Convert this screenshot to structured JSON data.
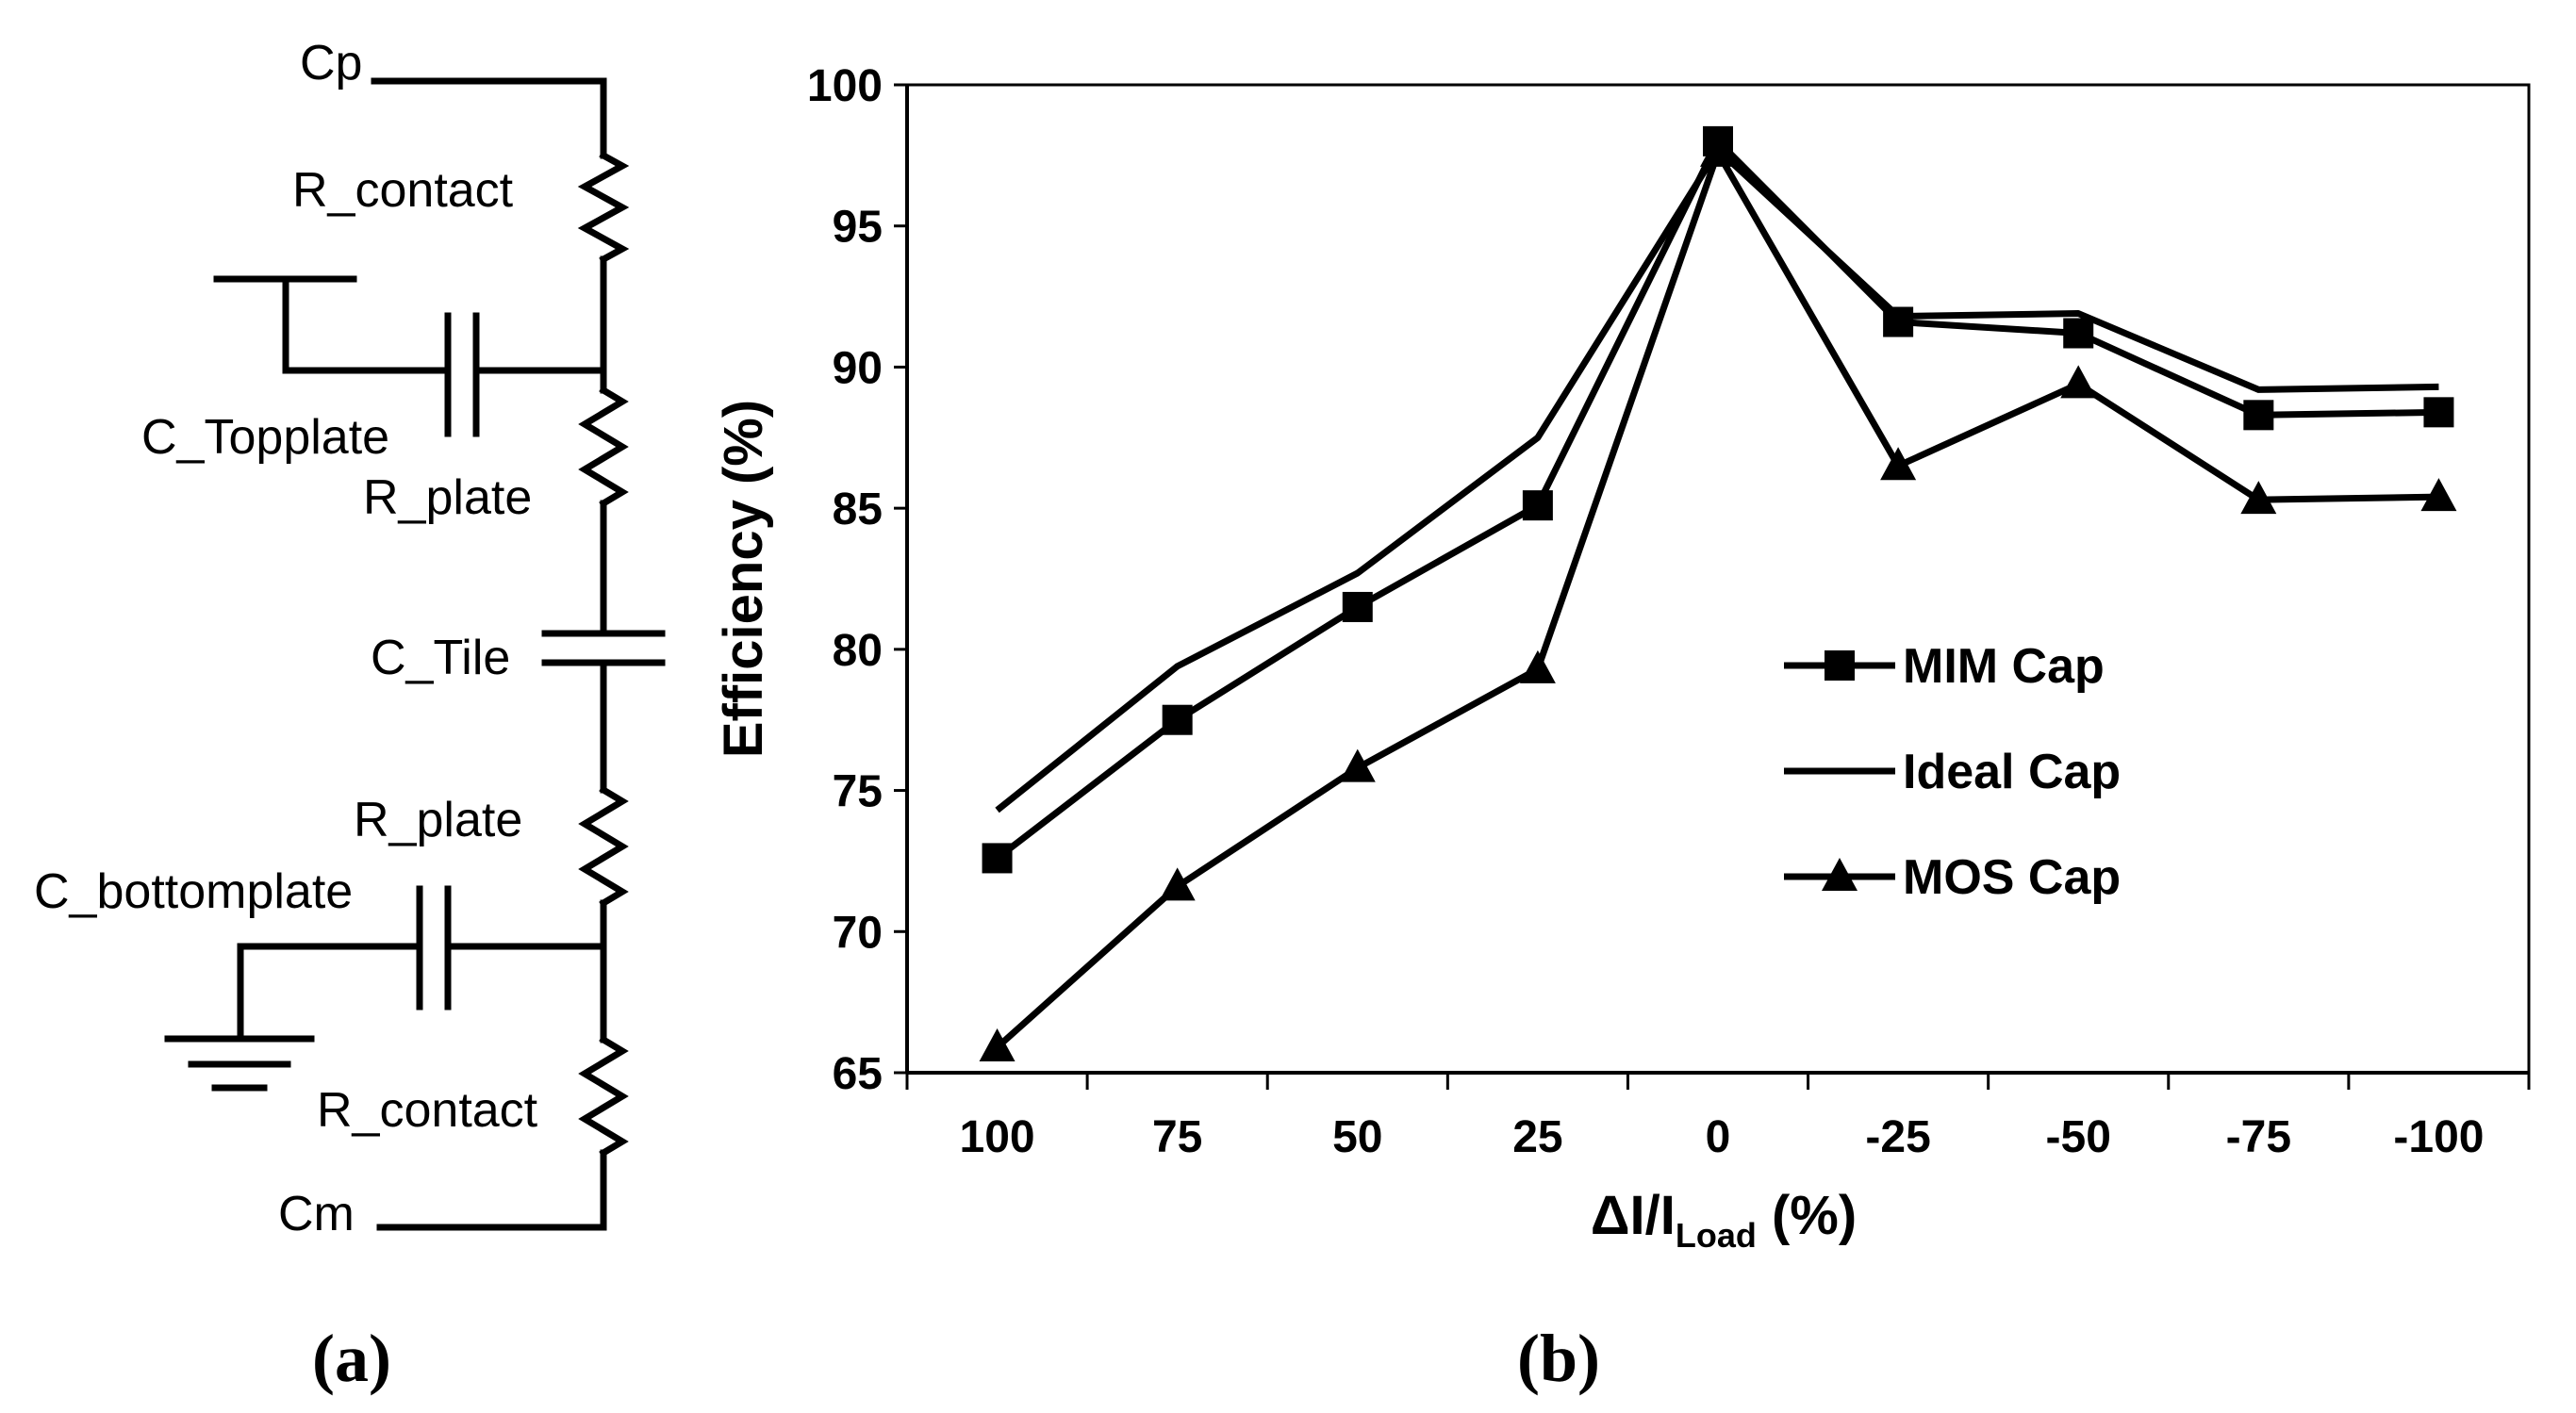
{
  "panel_a": {
    "label": "(a)",
    "nodes": {
      "top": "Cp",
      "bottom": "Cm",
      "r_contact_top": "R_contact",
      "c_topplate": "C_Topplate",
      "r_plate_top": "R_plate",
      "c_tile": "C_Tile",
      "r_plate_bottom": "R_plate",
      "c_bottomplate": "C_bottomplate",
      "r_contact_bottom": "R_contact"
    }
  },
  "panel_b": {
    "label": "(b)"
  },
  "chart_data": {
    "type": "line",
    "title": "",
    "xlabel": "ΔI/I",
    "xlabel_sub": "Load",
    "xlabel_suffix": " (%)",
    "ylabel": "Efficiency (%)",
    "categories": [
      "100",
      "75",
      "50",
      "25",
      "0",
      "-25",
      "-50",
      "-75",
      "-100"
    ],
    "ylim": [
      65,
      100
    ],
    "yticks": [
      "65",
      "70",
      "75",
      "80",
      "85",
      "90",
      "95",
      "100"
    ],
    "grid": false,
    "legend_position": "right-center",
    "series": [
      {
        "name": "MIM Cap",
        "marker": "square",
        "values": [
          72.6,
          77.5,
          81.5,
          85.1,
          98.0,
          91.6,
          91.2,
          88.3,
          88.4
        ]
      },
      {
        "name": "Ideal Cap",
        "marker": "none",
        "values": [
          74.3,
          79.4,
          82.7,
          87.5,
          97.7,
          91.8,
          91.9,
          89.2,
          89.3
        ]
      },
      {
        "name": "MOS Cap",
        "marker": "triangle",
        "values": [
          65.9,
          71.6,
          75.8,
          79.3,
          97.6,
          86.5,
          89.4,
          85.3,
          85.4
        ]
      }
    ]
  }
}
